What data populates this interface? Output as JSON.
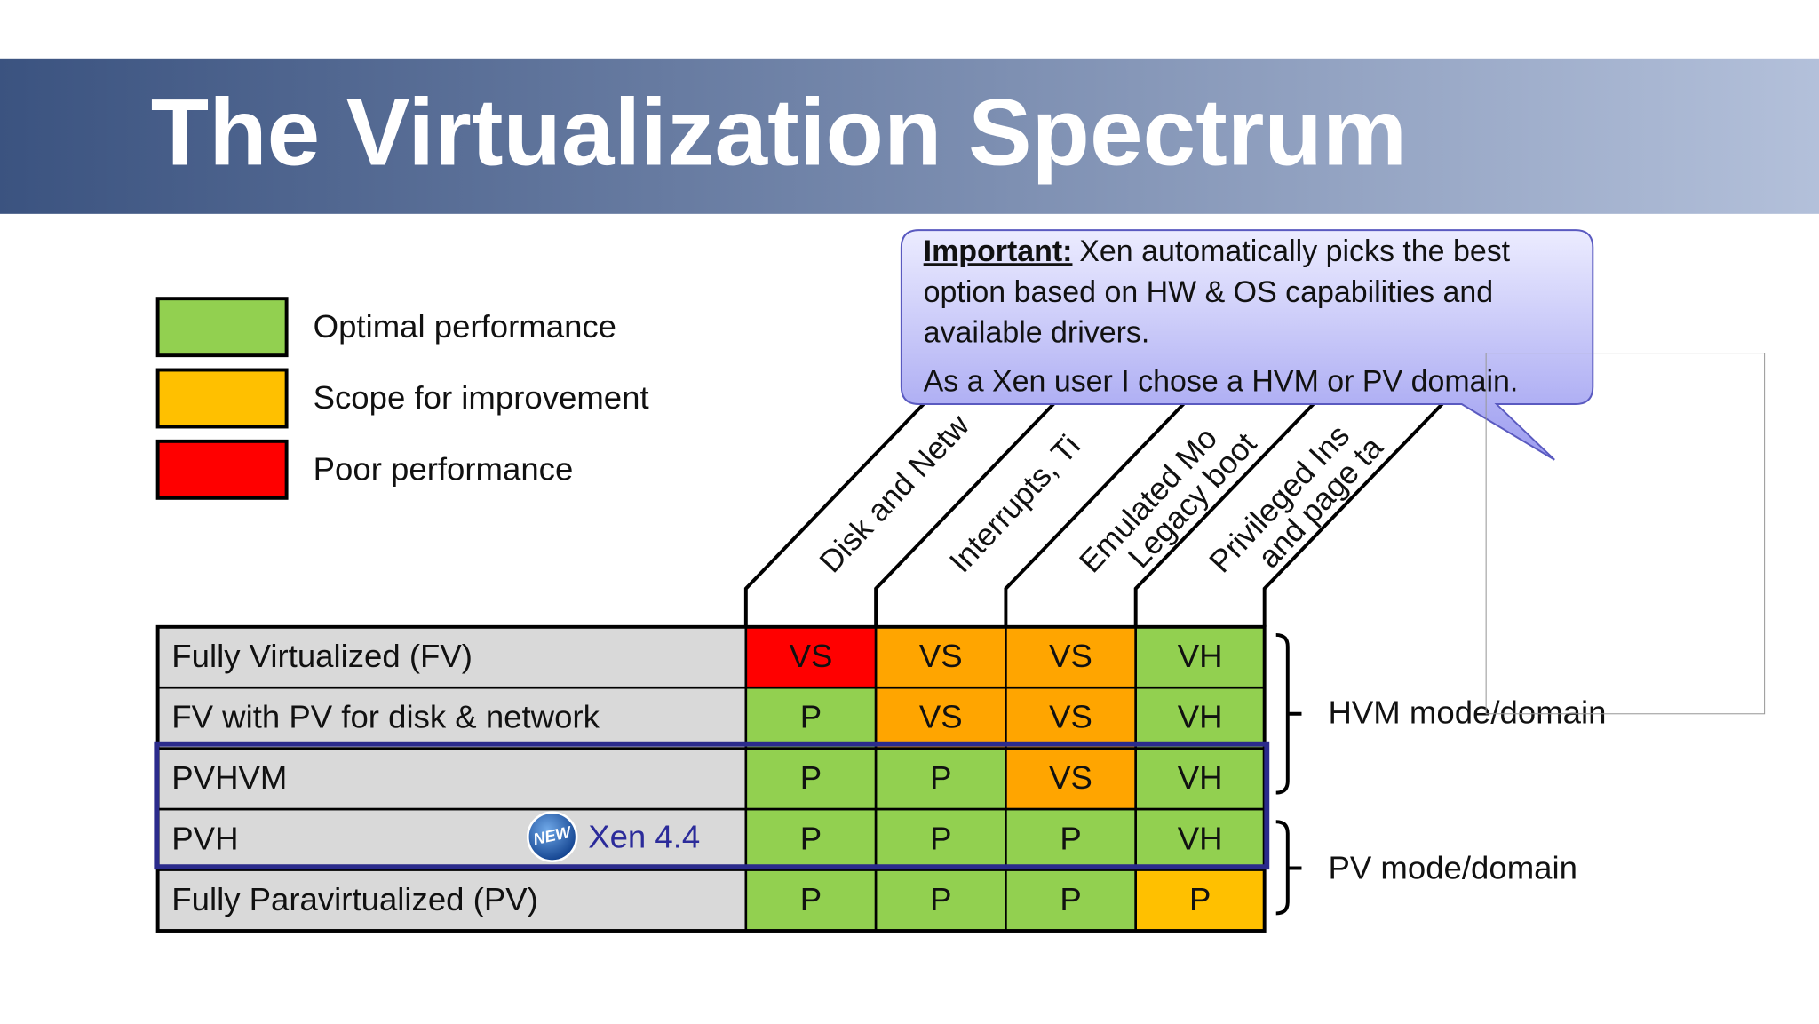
{
  "title": "The Virtualization Spectrum",
  "legend": [
    {
      "label": "Optimal performance",
      "color": "#92d050"
    },
    {
      "label": "Scope for improvement",
      "color": "#ffc000"
    },
    {
      "label": "Poor performance",
      "color": "#ff0000"
    }
  ],
  "columns": [
    [
      "Disk and Netw"
    ],
    [
      "Interrupts, Ti"
    ],
    [
      "Emulated Mo",
      "Legacy boot"
    ],
    [
      "Privileged Ins",
      "and page ta"
    ]
  ],
  "callout": {
    "lead": "Important:",
    "lines": [
      "Xen automatically picks the best",
      "option based on HW & OS capabilities and",
      "available drivers.",
      "As a Xen user I chose a HVM or PV domain."
    ]
  },
  "rows": [
    {
      "label": "Fully Virtualized (FV)",
      "cells": [
        {
          "text": "VS",
          "color": "#ff0000"
        },
        {
          "text": "VS",
          "color": "#ffa500"
        },
        {
          "text": "VS",
          "color": "#ffa500"
        },
        {
          "text": "VH",
          "color": "#92d050"
        }
      ]
    },
    {
      "label": "FV with PV for disk & network",
      "cells": [
        {
          "text": "P",
          "color": "#92d050"
        },
        {
          "text": "VS",
          "color": "#ffa500"
        },
        {
          "text": "VS",
          "color": "#ffa500"
        },
        {
          "text": "VH",
          "color": "#92d050"
        }
      ]
    },
    {
      "label": "PVHVM",
      "cells": [
        {
          "text": "P",
          "color": "#92d050"
        },
        {
          "text": "P",
          "color": "#92d050"
        },
        {
          "text": "VS",
          "color": "#ffa500"
        },
        {
          "text": "VH",
          "color": "#92d050"
        }
      ]
    },
    {
      "label": "PVH",
      "cells": [
        {
          "text": "P",
          "color": "#92d050"
        },
        {
          "text": "P",
          "color": "#92d050"
        },
        {
          "text": "P",
          "color": "#92d050"
        },
        {
          "text": "VH",
          "color": "#92d050"
        }
      ]
    },
    {
      "label": "Fully Paravirtualized (PV)",
      "cells": [
        {
          "text": "P",
          "color": "#92d050"
        },
        {
          "text": "P",
          "color": "#92d050"
        },
        {
          "text": "P",
          "color": "#92d050"
        },
        {
          "text": "P",
          "color": "#ffc000"
        }
      ]
    }
  ],
  "badge": {
    "icon": "NEW",
    "text": "Xen 4.4"
  },
  "groups": [
    "HVM mode/domain",
    "PV mode/domain"
  ]
}
